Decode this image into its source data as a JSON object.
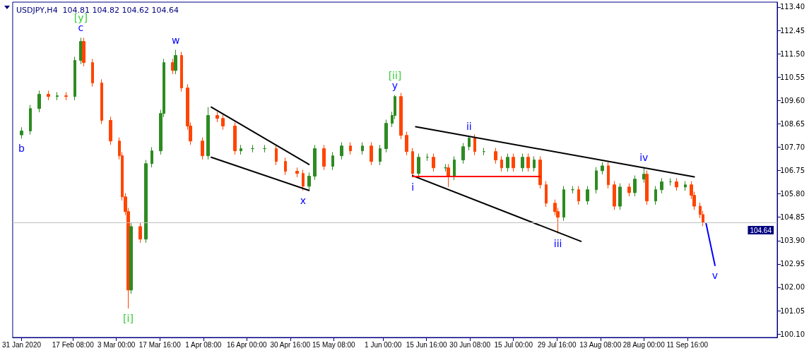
{
  "chart_data": {
    "type": "candlestick",
    "title": "USDJPY,H4  104.81 104.82 104.62 104.64",
    "x": [
      "2020-01-31",
      "2020-02-03",
      "2020-02-06",
      "2020-02-09",
      "2020-02-12",
      "2020-02-15",
      "2020-02-18",
      "2020-02-20",
      "2020-02-21",
      "2020-02-24",
      "2020-02-27",
      "2020-03-01",
      "2020-03-04",
      "2020-03-05",
      "2020-03-06",
      "2020-03-07",
      "2020-03-08",
      "2020-03-11",
      "2020-03-13",
      "2020-03-15",
      "2020-03-18",
      "2020-03-19",
      "2020-03-22",
      "2020-03-23",
      "2020-03-25",
      "2020-03-27",
      "2020-03-28",
      "2020-04-01",
      "2020-04-03",
      "2020-04-06",
      "2020-04-08",
      "2020-04-12",
      "2020-04-14",
      "2020-04-18",
      "2020-04-22",
      "2020-04-26",
      "2020-04-29",
      "2020-05-03",
      "2020-05-05",
      "2020-05-07",
      "2020-05-09",
      "2020-05-12",
      "2020-05-15",
      "2020-05-18",
      "2020-05-21",
      "2020-05-25",
      "2020-05-28",
      "2020-05-31",
      "2020-06-02",
      "2020-06-04",
      "2020-06-05",
      "2020-06-07",
      "2020-06-09",
      "2020-06-11",
      "2020-06-13",
      "2020-06-16",
      "2020-06-18",
      "2020-06-22",
      "2020-06-23",
      "2020-06-25",
      "2020-06-28",
      "2020-06-30",
      "2020-07-02",
      "2020-07-05",
      "2020-07-09",
      "2020-07-11",
      "2020-07-13",
      "2020-07-15",
      "2020-07-18",
      "2020-07-20",
      "2020-07-22",
      "2020-07-24",
      "2020-07-26",
      "2020-07-29",
      "2020-07-30",
      "2020-08-01",
      "2020-08-04",
      "2020-08-06",
      "2020-08-09",
      "2020-08-12",
      "2020-08-14",
      "2020-08-16",
      "2020-08-18",
      "2020-08-20",
      "2020-08-23",
      "2020-08-25",
      "2020-08-28",
      "2020-08-29",
      "2020-09-01",
      "2020-09-03",
      "2020-09-06",
      "2020-09-08",
      "2020-09-11",
      "2020-09-13",
      "2020-09-14",
      "2020-09-16",
      "2020-09-17"
    ],
    "ohlc": [
      [
        108.2,
        108.51,
        108.05,
        108.36
      ],
      [
        108.36,
        109.42,
        108.21,
        109.27
      ],
      [
        109.27,
        110.0,
        109.12,
        109.85
      ],
      [
        109.85,
        110.0,
        109.61,
        109.76
      ],
      [
        109.76,
        109.94,
        109.61,
        109.79
      ],
      [
        109.79,
        109.94,
        109.61,
        109.76
      ],
      [
        109.76,
        111.38,
        109.61,
        111.23
      ],
      [
        111.23,
        112.15,
        111.08,
        112.0
      ],
      [
        112.0,
        112.15,
        110.99,
        111.14
      ],
      [
        111.14,
        111.29,
        110.16,
        110.31
      ],
      [
        110.31,
        110.46,
        108.64,
        108.79
      ],
      [
        108.79,
        108.94,
        107.8,
        107.95
      ],
      [
        107.95,
        108.1,
        107.2,
        107.35
      ],
      [
        107.35,
        107.5,
        105.53,
        105.68
      ],
      [
        105.68,
        105.83,
        104.93,
        105.08
      ],
      [
        105.08,
        105.23,
        101.14,
        101.89
      ],
      [
        101.89,
        104.62,
        101.74,
        104.47
      ],
      [
        104.47,
        104.62,
        103.81,
        103.96
      ],
      [
        103.96,
        107.18,
        103.81,
        107.03
      ],
      [
        107.03,
        107.7,
        106.88,
        107.55
      ],
      [
        107.55,
        109.22,
        107.4,
        109.07
      ],
      [
        109.07,
        111.29,
        108.92,
        111.14
      ],
      [
        111.14,
        111.29,
        110.67,
        110.82
      ],
      [
        110.82,
        111.66,
        110.67,
        111.43
      ],
      [
        111.43,
        111.58,
        109.96,
        110.11
      ],
      [
        110.11,
        110.26,
        108.41,
        108.56
      ],
      [
        108.56,
        108.71,
        107.8,
        107.95
      ],
      [
        107.95,
        108.1,
        107.2,
        107.35
      ],
      [
        107.35,
        109.33,
        107.2,
        108.99
      ],
      [
        108.99,
        109.14,
        108.72,
        108.87
      ],
      [
        108.87,
        109.02,
        108.41,
        108.56
      ],
      [
        108.56,
        108.71,
        107.4,
        107.55
      ],
      [
        107.55,
        107.79,
        107.4,
        107.64
      ],
      [
        107.64,
        107.79,
        107.49,
        107.64
      ],
      [
        107.64,
        107.79,
        107.49,
        107.64
      ],
      [
        107.64,
        107.79,
        106.97,
        107.12
      ],
      [
        107.12,
        107.27,
        106.57,
        106.72
      ],
      [
        106.72,
        106.87,
        106.48,
        106.63
      ],
      [
        106.63,
        106.78,
        105.94,
        106.11
      ],
      [
        106.11,
        106.67,
        105.96,
        106.52
      ],
      [
        106.52,
        107.79,
        106.37,
        107.64
      ],
      [
        107.64,
        107.79,
        106.77,
        106.92
      ],
      [
        106.92,
        107.5,
        106.77,
        107.35
      ],
      [
        107.35,
        107.9,
        107.2,
        107.75
      ],
      [
        107.75,
        107.9,
        107.4,
        107.55
      ],
      [
        107.55,
        107.9,
        107.4,
        107.75
      ],
      [
        107.75,
        107.9,
        106.97,
        107.12
      ],
      [
        107.12,
        107.79,
        106.97,
        107.64
      ],
      [
        107.64,
        108.82,
        107.49,
        108.67
      ],
      [
        108.67,
        109.14,
        108.52,
        108.99
      ],
      [
        108.99,
        109.82,
        108.84,
        109.76
      ],
      [
        109.76,
        109.91,
        108.03,
        108.18
      ],
      [
        108.18,
        108.33,
        107.37,
        107.52
      ],
      [
        107.52,
        107.67,
        106.48,
        106.63
      ],
      [
        106.63,
        107.44,
        106.48,
        107.29
      ],
      [
        107.29,
        107.44,
        107.14,
        107.29
      ],
      [
        107.29,
        107.44,
        106.71,
        106.86
      ],
      [
        106.86,
        107.01,
        106.71,
        106.86
      ],
      [
        106.86,
        107.01,
        106.08,
        106.51
      ],
      [
        106.51,
        107.33,
        106.36,
        107.18
      ],
      [
        107.18,
        107.87,
        107.03,
        107.72
      ],
      [
        107.72,
        108.13,
        107.57,
        108.07
      ],
      [
        108.07,
        108.22,
        107.37,
        107.52
      ],
      [
        107.52,
        107.67,
        107.37,
        107.52
      ],
      [
        107.52,
        107.67,
        107.03,
        107.18
      ],
      [
        107.18,
        107.33,
        106.71,
        106.86
      ],
      [
        106.86,
        107.44,
        106.71,
        107.29
      ],
      [
        107.29,
        107.44,
        106.71,
        106.86
      ],
      [
        106.86,
        107.44,
        106.71,
        107.29
      ],
      [
        107.29,
        107.44,
        106.71,
        106.86
      ],
      [
        106.86,
        107.33,
        106.71,
        107.18
      ],
      [
        107.18,
        107.33,
        106.02,
        106.17
      ],
      [
        106.17,
        106.32,
        105.27,
        105.42
      ],
      [
        105.42,
        105.57,
        104.93,
        105.08
      ],
      [
        105.08,
        105.23,
        104.19,
        104.85
      ],
      [
        104.85,
        106.12,
        104.7,
        105.97
      ],
      [
        105.97,
        106.12,
        105.82,
        105.97
      ],
      [
        105.97,
        106.12,
        105.36,
        105.51
      ],
      [
        105.51,
        106.12,
        105.36,
        105.97
      ],
      [
        105.97,
        106.89,
        105.82,
        106.74
      ],
      [
        106.74,
        107.09,
        106.59,
        106.94
      ],
      [
        106.94,
        107.09,
        106.02,
        106.17
      ],
      [
        106.17,
        106.32,
        105.15,
        105.3
      ],
      [
        105.3,
        106.23,
        105.15,
        106.08
      ],
      [
        106.08,
        106.23,
        105.7,
        105.85
      ],
      [
        105.85,
        106.55,
        105.7,
        106.4
      ],
      [
        106.4,
        106.89,
        106.25,
        106.6
      ],
      [
        106.6,
        106.75,
        105.36,
        105.51
      ],
      [
        105.51,
        106.12,
        105.36,
        105.97
      ],
      [
        105.97,
        106.44,
        105.82,
        106.29
      ],
      [
        106.29,
        106.44,
        106.14,
        106.29
      ],
      [
        106.29,
        106.44,
        105.93,
        106.08
      ],
      [
        106.08,
        106.32,
        105.93,
        106.17
      ],
      [
        106.17,
        106.32,
        105.59,
        105.74
      ],
      [
        105.74,
        105.89,
        105.15,
        105.3
      ],
      [
        105.3,
        105.45,
        104.81,
        104.96
      ],
      [
        104.96,
        105.11,
        104.49,
        104.64
      ]
    ],
    "colors": [
      "#2e8b22",
      "#2e8b22",
      "#2e8b22",
      "#ff4500",
      "#2e8b22",
      "#ff4500",
      "#2e8b22",
      "#2e8b22",
      "#ff4500",
      "#ff4500",
      "#ff4500",
      "#ff4500",
      "#ff4500",
      "#ff4500",
      "#ff4500",
      "#ff4500",
      "#2e8b22",
      "#ff4500",
      "#2e8b22",
      "#2e8b22",
      "#2e8b22",
      "#2e8b22",
      "#ff4500",
      "#2e8b22",
      "#ff4500",
      "#ff4500",
      "#ff4500",
      "#ff4500",
      "#2e8b22",
      "#ff4500",
      "#ff4500",
      "#ff4500",
      "#2e8b22",
      "#2e8b22",
      "#2e8b22",
      "#ff4500",
      "#ff4500",
      "#ff4500",
      "#ff4500",
      "#2e8b22",
      "#2e8b22",
      "#ff4500",
      "#2e8b22",
      "#2e8b22",
      "#ff4500",
      "#2e8b22",
      "#ff4500",
      "#2e8b22",
      "#2e8b22",
      "#2e8b22",
      "#2e8b22",
      "#ff4500",
      "#ff4500",
      "#ff4500",
      "#2e8b22",
      "#2e8b22",
      "#ff4500",
      "#2e8b22",
      "#ff4500",
      "#2e8b22",
      "#2e8b22",
      "#2e8b22",
      "#ff4500",
      "#2e8b22",
      "#ff4500",
      "#ff4500",
      "#2e8b22",
      "#ff4500",
      "#2e8b22",
      "#ff4500",
      "#2e8b22",
      "#ff4500",
      "#ff4500",
      "#ff4500",
      "#ff4500",
      "#2e8b22",
      "#2e8b22",
      "#ff4500",
      "#2e8b22",
      "#2e8b22",
      "#2e8b22",
      "#ff4500",
      "#ff4500",
      "#2e8b22",
      "#ff4500",
      "#2e8b22",
      "#2e8b22",
      "#ff4500",
      "#2e8b22",
      "#2e8b22",
      "#2e8b22",
      "#ff4500",
      "#2e8b22",
      "#ff4500",
      "#ff4500",
      "#ff4500",
      "#ff4500"
    ],
    "series": [
      {
        "type": "line",
        "color": "#000000",
        "x": [
          "2020-04-04",
          "2020-05-07"
        ],
        "values": [
          109.33,
          107.0
        ]
      },
      {
        "type": "line",
        "color": "#000000",
        "x": [
          "2020-04-04",
          "2020-05-07"
        ],
        "values": [
          107.29,
          105.94
        ]
      },
      {
        "type": "line",
        "color": "#000000",
        "x": [
          "2020-06-12",
          "2020-09-14"
        ],
        "values": [
          108.53,
          106.49
        ]
      },
      {
        "type": "line",
        "color": "#000000",
        "x": [
          "2020-06-11",
          "2020-08-06T19:00"
        ],
        "values": [
          106.54,
          103.87
        ]
      },
      {
        "type": "line",
        "color": "#ff0000",
        "x": [
          "2020-06-11",
          "2020-07-24"
        ],
        "values": [
          106.51,
          106.51
        ]
      },
      {
        "type": "line",
        "color": "#0000ff",
        "x": [
          "2020-09-18",
          "2020-09-21"
        ],
        "values": [
          104.59,
          102.89
        ]
      }
    ],
    "ref_lines": [
      {
        "axis": "y",
        "value": 104.64,
        "label": "104.64",
        "color": "#c0c0c0"
      }
    ],
    "annotations": [
      {
        "text": "c",
        "x": "2020-02-20",
        "y": 112.15
      },
      {
        "text": "[y]",
        "x": "2020-02-20",
        "y": 112.15
      },
      {
        "text": "w",
        "x": "2020-03-23",
        "y": 111.66
      },
      {
        "text": "y",
        "x": "2020-06-05",
        "y": 109.82
      },
      {
        "text": "[ii]",
        "x": "2020-06-05",
        "y": 109.82
      },
      {
        "text": "x",
        "x": "2020-05-05",
        "y": 105.94
      },
      {
        "text": "i",
        "x": "2020-06-11",
        "y": 106.48
      },
      {
        "text": "ii",
        "x": "2020-06-30",
        "y": 108.13
      },
      {
        "text": "iii",
        "x": "2020-07-30",
        "y": 104.19
      },
      {
        "text": "iv",
        "x": "2020-08-28",
        "y": 106.89
      },
      {
        "text": "v",
        "x": "2020-09-21",
        "y": 102.89
      },
      {
        "text": "[i]",
        "x": "2020-03-07",
        "y": 101.14
      },
      {
        "text": "b",
        "x": "2020-01-31",
        "y": 108.05
      }
    ],
    "xlim": [
      "2020-01-28T00:00",
      "2020-10-12T00:00"
    ],
    "xticks": [
      {
        "value": "2020-01-31T00:00",
        "label": "31 Jan 2020"
      },
      {
        "value": "2020-02-17T08:00",
        "label": "17 Feb 08:00"
      },
      {
        "value": "2020-03-03T00:00",
        "label": "3 Mar 00:00"
      },
      {
        "value": "2020-03-17T16:00",
        "label": "17 Mar 16:00"
      },
      {
        "value": "2020-04-01T08:00",
        "label": "1 Apr 08:00"
      },
      {
        "value": "2020-04-16T00:00",
        "label": "16 Apr 00:00"
      },
      {
        "value": "2020-04-30T16:00",
        "label": "30 Apr 16:00"
      },
      {
        "value": "2020-05-15T08:00",
        "label": "15 May 08:00"
      },
      {
        "value": "2020-06-01T00:00",
        "label": "1 Jun 00:00"
      },
      {
        "value": "2020-06-15T16:00",
        "label": "15 Jun 16:00"
      },
      {
        "value": "2020-06-30T08:00",
        "label": "30 Jun 08:00"
      },
      {
        "value": "2020-07-15T00:00",
        "label": "15 Jul 00:00"
      },
      {
        "value": "2020-07-29T16:00",
        "label": "29 Jul 16:00"
      },
      {
        "value": "2020-08-13T08:00",
        "label": "13 Aug 08:00"
      },
      {
        "value": "2020-08-28T00:00",
        "label": "28 Aug 00:00"
      },
      {
        "value": "2020-09-11T16:00",
        "label": "11 Sep 16:00"
      }
    ],
    "ylim": [
      99.96,
      113.6
    ],
    "yticks": [
      {
        "value": 100.1,
        "label": "100.10"
      },
      {
        "value": 101.05,
        "label": "101.05"
      },
      {
        "value": 102,
        "label": "102.00"
      },
      {
        "value": 102.95,
        "label": "102.95"
      },
      {
        "value": 103.9,
        "label": "103.90"
      },
      {
        "value": 104.85,
        "label": "104.85"
      },
      {
        "value": 105.8,
        "label": "105.80"
      },
      {
        "value": 106.75,
        "label": "106.75"
      },
      {
        "value": 107.7,
        "label": "107.70"
      },
      {
        "value": 108.65,
        "label": "108.65"
      },
      {
        "value": 109.6,
        "label": "109.60"
      },
      {
        "value": 110.55,
        "label": "110.55"
      },
      {
        "value": 111.5,
        "label": "111.50"
      },
      {
        "value": 112.45,
        "label": "112.45"
      },
      {
        "value": 113.4,
        "label": "113.40"
      }
    ]
  }
}
